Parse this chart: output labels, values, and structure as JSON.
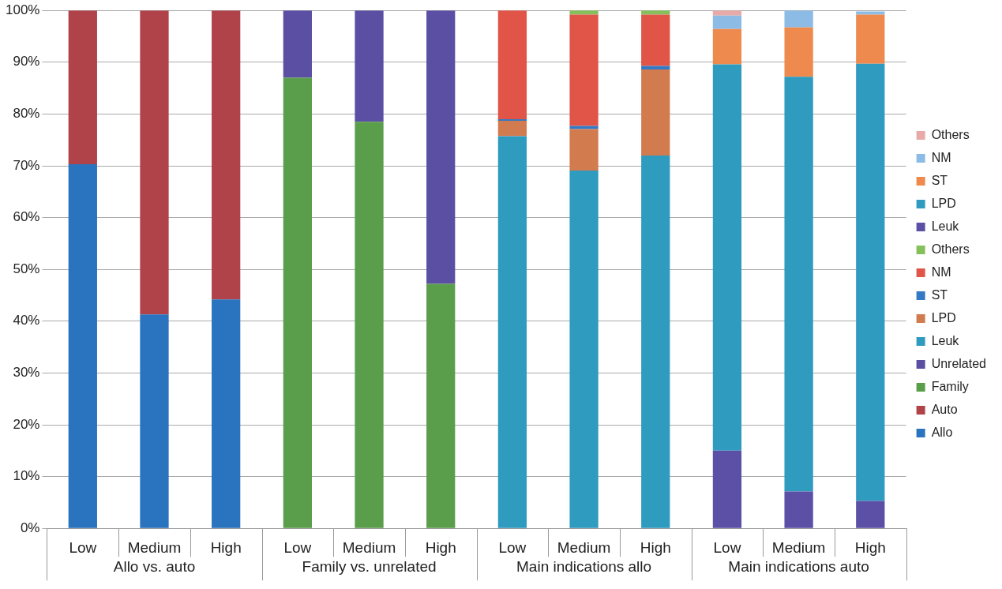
{
  "chart_data": {
    "type": "bar",
    "stacked": true,
    "legend": "right",
    "grid": "y",
    "categories": [
      "Low",
      "Medium",
      "High",
      "Low",
      "Medium",
      "High",
      "Low",
      "Medium",
      "High",
      "Low",
      "Medium",
      "High"
    ],
    "annotations": [
      "Allo vs. auto",
      "Family vs. unrelated",
      "Main indications allo",
      "Main indications auto"
    ],
    "ylim": [
      0,
      100
    ],
    "yticks": [
      {
        "value": 0,
        "label": "0%"
      },
      {
        "value": 10,
        "label": "10%"
      },
      {
        "value": 20,
        "label": "20%"
      },
      {
        "value": 30,
        "label": "30%"
      },
      {
        "value": 40,
        "label": "40%"
      },
      {
        "value": 50,
        "label": "50%"
      },
      {
        "value": 60,
        "label": "60%"
      },
      {
        "value": 70,
        "label": "70%"
      },
      {
        "value": 80,
        "label": "80%"
      },
      {
        "value": 90,
        "label": "90%"
      },
      {
        "value": 100,
        "label": "100%"
      }
    ],
    "series": [
      {
        "name": "Allo",
        "color": "#2a73be",
        "values": [
          70.3,
          41.3,
          44.2,
          null,
          null,
          null,
          null,
          null,
          null,
          null,
          null,
          null
        ]
      },
      {
        "name": "Auto",
        "color": "#b0434a",
        "values": [
          29.7,
          58.7,
          55.8,
          null,
          null,
          null,
          null,
          null,
          null,
          null,
          null,
          null
        ]
      },
      {
        "name": "Family",
        "color": "#5a9e4b",
        "values": [
          null,
          null,
          null,
          87,
          78.5,
          47.2,
          null,
          null,
          null,
          null,
          null,
          null
        ]
      },
      {
        "name": "Unrelated",
        "color": "#5a4fa3",
        "values": [
          null,
          null,
          null,
          13,
          21.5,
          52.8,
          null,
          null,
          null,
          null,
          null,
          null
        ]
      },
      {
        "name": "Leuk",
        "color": "#2e9bbf",
        "values": [
          null,
          null,
          null,
          null,
          null,
          null,
          75.7,
          69.1,
          72.0,
          null,
          null,
          null
        ]
      },
      {
        "name": "LPD",
        "color": "#d27b4f",
        "values": [
          null,
          null,
          null,
          null,
          null,
          null,
          3.0,
          8.0,
          16.6,
          null,
          null,
          null
        ]
      },
      {
        "name": "ST",
        "color": "#3479c4",
        "values": [
          null,
          null,
          null,
          null,
          null,
          null,
          0.3,
          0.6,
          0.7,
          null,
          null,
          null
        ]
      },
      {
        "name": "NM",
        "color": "#e05548",
        "values": [
          null,
          null,
          null,
          null,
          null,
          null,
          21.0,
          21.5,
          9.9,
          null,
          null,
          null
        ]
      },
      {
        "name": "Others",
        "color": "#86c05a",
        "values": [
          null,
          null,
          null,
          null,
          null,
          null,
          0,
          0.8,
          0.8,
          null,
          null,
          null
        ]
      },
      {
        "name": "Leuk",
        "color": "#5c4fa6",
        "values": [
          null,
          null,
          null,
          null,
          null,
          null,
          null,
          null,
          null,
          15.0,
          7.1,
          5.3
        ]
      },
      {
        "name": "LPD",
        "color": "#2e9bbf",
        "values": [
          null,
          null,
          null,
          null,
          null,
          null,
          null,
          null,
          null,
          74.6,
          80.1,
          84.4
        ]
      },
      {
        "name": "ST",
        "color": "#ef8a4f",
        "values": [
          null,
          null,
          null,
          null,
          null,
          null,
          null,
          null,
          null,
          6.8,
          9.5,
          9.5
        ]
      },
      {
        "name": "NM",
        "color": "#8cbbe5",
        "values": [
          null,
          null,
          null,
          null,
          null,
          null,
          null,
          null,
          null,
          2.6,
          3.3,
          0.6
        ]
      },
      {
        "name": "Others",
        "color": "#e8aaa8",
        "values": [
          null,
          null,
          null,
          null,
          null,
          null,
          null,
          null,
          null,
          1.0,
          0,
          null
        ]
      }
    ]
  }
}
